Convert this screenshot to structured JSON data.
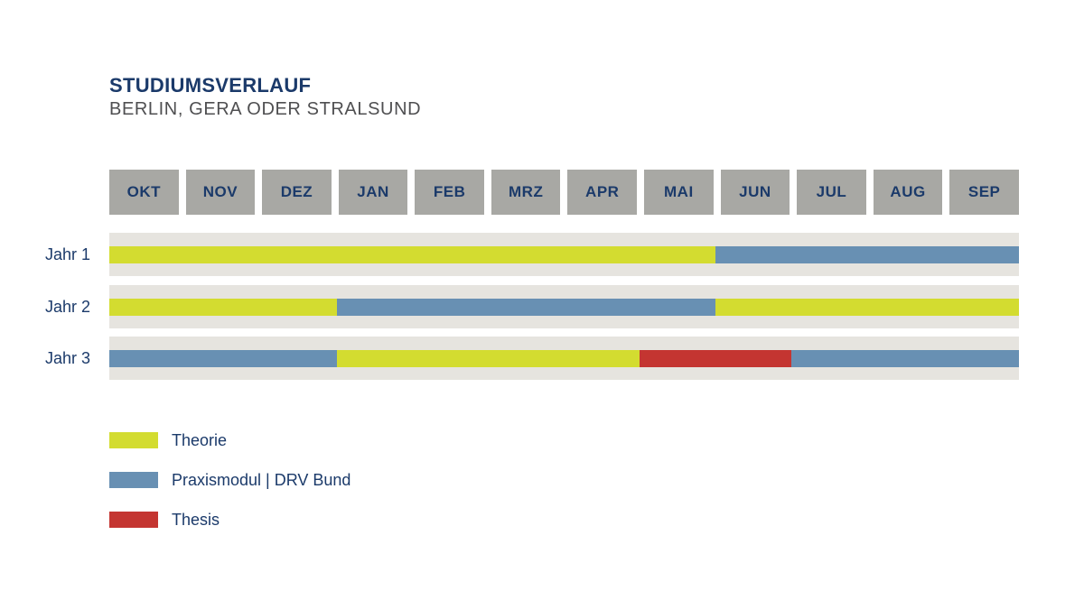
{
  "title": "STUDIUMSVERLAUF",
  "subtitle": "BERLIN, GERA ODER STRALSUND",
  "colors": {
    "theorie": "#d3dc30",
    "praxis": "#6890b3",
    "thesis": "#c43531",
    "month_box": "#a8a8a4",
    "track": "#e6e4df",
    "navy": "#1b3a6a",
    "subtitle_gray": "#4f4f51"
  },
  "chart_data": {
    "type": "bar",
    "variant": "horizontal-stacked-timeline",
    "title": "STUDIUMSVERLAUF",
    "subtitle": "BERLIN, GERA ODER STRALSUND",
    "months": [
      "OKT",
      "NOV",
      "DEZ",
      "JAN",
      "FEB",
      "MRZ",
      "APR",
      "MAI",
      "JUN",
      "JUL",
      "AUG",
      "SEP"
    ],
    "months_per_year": 12,
    "rows": [
      {
        "label": "Jahr 1",
        "segments": [
          {
            "type": "theorie",
            "label": "Theorie",
            "start": "OKT",
            "end": "MAI",
            "months": 8
          },
          {
            "type": "praxis",
            "label": "Praxismodul | DRV Bund",
            "start": "JUN",
            "end": "SEP",
            "months": 4
          }
        ]
      },
      {
        "label": "Jahr 2",
        "segments": [
          {
            "type": "theorie",
            "label": "Theorie",
            "start": "OKT",
            "end": "DEZ",
            "months": 3
          },
          {
            "type": "praxis",
            "label": "Praxismodul | DRV Bund",
            "start": "JAN",
            "end": "MAI",
            "months": 5
          },
          {
            "type": "theorie",
            "label": "Theorie",
            "start": "JUN",
            "end": "SEP",
            "months": 4
          }
        ]
      },
      {
        "label": "Jahr 3",
        "segments": [
          {
            "type": "praxis",
            "label": "Praxismodul | DRV Bund",
            "start": "OKT",
            "end": "DEZ",
            "months": 3
          },
          {
            "type": "theorie",
            "label": "Theorie",
            "start": "JAN",
            "end": "APR",
            "months": 4
          },
          {
            "type": "thesis",
            "label": "Thesis",
            "start": "MAI",
            "end": "JUN",
            "months": 2
          },
          {
            "type": "praxis",
            "label": "Praxismodul | DRV Bund",
            "start": "JUL",
            "end": "SEP",
            "months": 3
          }
        ]
      }
    ],
    "legend": [
      {
        "type": "theorie",
        "label": "Theorie"
      },
      {
        "type": "praxis",
        "label": "Praxismodul | DRV Bund"
      },
      {
        "type": "thesis",
        "label": "Thesis"
      }
    ],
    "legend_position": "bottom-left",
    "grid": false
  }
}
